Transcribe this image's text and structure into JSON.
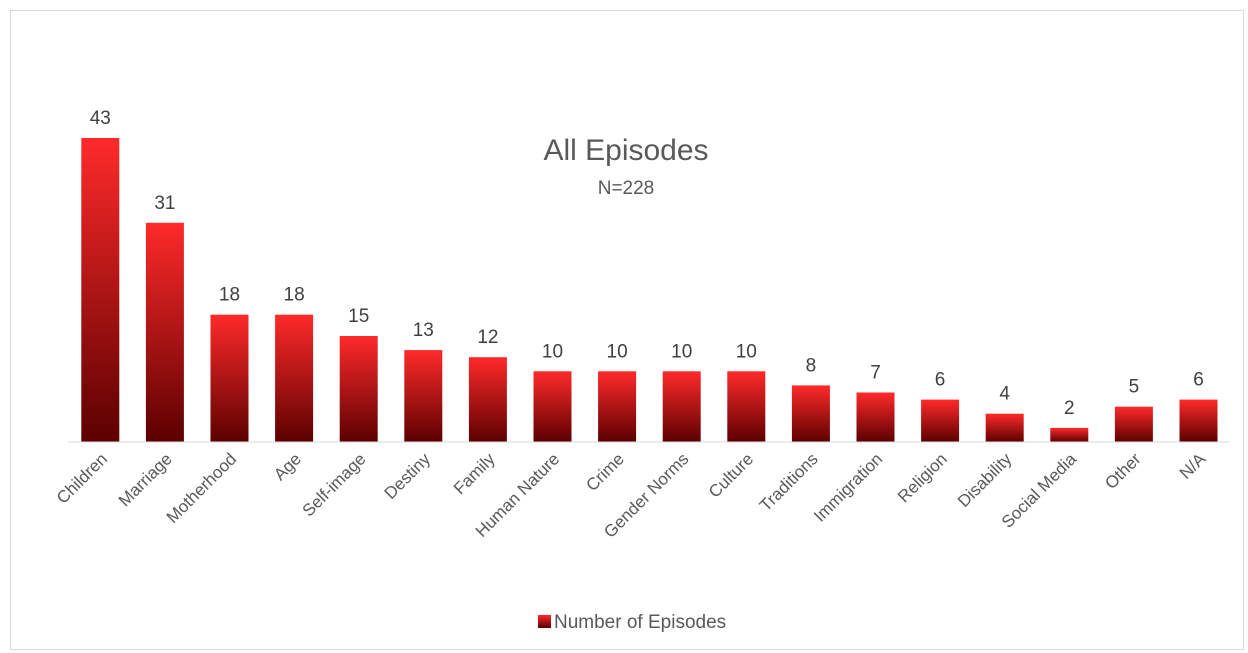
{
  "chart_data": {
    "type": "bar",
    "title": "All Episodes",
    "subtitle": "N=228",
    "xlabel": "",
    "ylabel": "",
    "categories": [
      "Children",
      "Marriage",
      "Motherhood",
      "Age",
      "Self-image",
      "Destiny",
      "Family",
      "Human Nature",
      "Crime",
      "Gender Norms",
      "Culture",
      "Traditions",
      "Immigration",
      "Religion",
      "Disability",
      "Social Media",
      "Other",
      "N/A"
    ],
    "series": [
      {
        "name": "Number of Episodes",
        "values": [
          43,
          31,
          18,
          18,
          15,
          13,
          12,
          10,
          10,
          10,
          10,
          8,
          7,
          6,
          4,
          2,
          5,
          6
        ]
      }
    ],
    "ylim": [
      0,
      43
    ],
    "grid": false,
    "legend_position": "bottom",
    "bar_color_top": "#ff2a2a",
    "bar_color_bottom": "#5c0000"
  }
}
